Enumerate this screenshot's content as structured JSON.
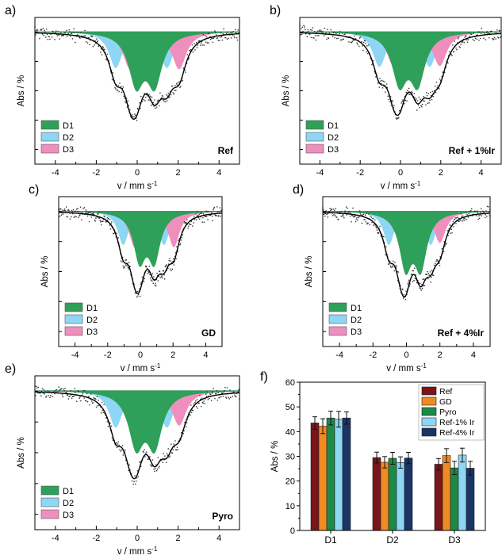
{
  "colors": {
    "D1": "#2ea05a",
    "D2": "#8fd6f4",
    "D3": "#ef8fbd",
    "fit": "#000000",
    "points": "#333333"
  },
  "chart_data": [
    {
      "panel": "a)",
      "type": "mossbauer-spectrum",
      "sample": "Ref",
      "xlabel": "v / mm s-1",
      "ylabel": "Abs / %",
      "xlim": [
        -5,
        5
      ],
      "xticks": [
        "-4",
        "-2",
        "0",
        "2",
        "4"
      ],
      "legend": [
        "D1",
        "D2",
        "D3"
      ],
      "legend_position": "bottom-left",
      "components": [
        {
          "name": "D1",
          "centers": [
            -0.05,
            0.85
          ],
          "width": 0.45,
          "depth": 0.46
        },
        {
          "name": "D2",
          "centers": [
            -1.05,
            1.45
          ],
          "width": 0.4,
          "depth": 0.33
        },
        {
          "name": "D3",
          "centers": [
            -0.35,
            2.05
          ],
          "width": 0.42,
          "depth": 0.34
        }
      ]
    },
    {
      "panel": "b)",
      "type": "mossbauer-spectrum",
      "sample": "Ref + 1%Ir",
      "xlabel": "v / mm s-1",
      "ylabel": "Abs / %",
      "xlim": [
        -5,
        5
      ],
      "xticks": [
        "-4",
        "-2",
        "0",
        "2",
        "4"
      ],
      "legend": [
        "D1",
        "D2",
        "D3"
      ],
      "legend_position": "bottom-left",
      "components": [
        {
          "name": "D1",
          "centers": [
            -0.05,
            0.85
          ],
          "width": 0.45,
          "depth": 0.45
        },
        {
          "name": "D2",
          "centers": [
            -1.05,
            1.45
          ],
          "width": 0.4,
          "depth": 0.32
        },
        {
          "name": "D3",
          "centers": [
            -0.35,
            1.95
          ],
          "width": 0.42,
          "depth": 0.31
        }
      ]
    },
    {
      "panel": "c)",
      "type": "mossbauer-spectrum",
      "sample": "GD",
      "xlabel": "v / mm s-1",
      "ylabel": "Abs / %",
      "xlim": [
        -5,
        5
      ],
      "xticks": [
        "-4",
        "-2",
        "0",
        "2",
        "4"
      ],
      "legend": [
        "D1",
        "D2",
        "D3"
      ],
      "legend_position": "bottom-left",
      "components": [
        {
          "name": "D1",
          "centers": [
            -0.05,
            0.85
          ],
          "width": 0.45,
          "depth": 0.42
        },
        {
          "name": "D2",
          "centers": [
            -1.05,
            1.45
          ],
          "width": 0.4,
          "depth": 0.3
        },
        {
          "name": "D3",
          "centers": [
            -0.35,
            2.05
          ],
          "width": 0.42,
          "depth": 0.32
        }
      ]
    },
    {
      "panel": "d)",
      "type": "mossbauer-spectrum",
      "sample": "Ref + 4%Ir",
      "xlabel": "v / mm s-1",
      "ylabel": "Abs / %",
      "xlim": [
        -5,
        5
      ],
      "xticks": [
        "-4",
        "-2",
        "0",
        "2",
        "4"
      ],
      "legend": [
        "D1",
        "D2",
        "D3"
      ],
      "legend_position": "bottom-left",
      "components": [
        {
          "name": "D1",
          "centers": [
            -0.05,
            0.85
          ],
          "width": 0.45,
          "depth": 0.48
        },
        {
          "name": "D2",
          "centers": [
            -1.05,
            1.45
          ],
          "width": 0.4,
          "depth": 0.3
        },
        {
          "name": "D3",
          "centers": [
            -0.35,
            2.0
          ],
          "width": 0.42,
          "depth": 0.28
        }
      ]
    },
    {
      "panel": "e)",
      "type": "mossbauer-spectrum",
      "sample": "Pyro",
      "xlabel": "v / mm s-1",
      "ylabel": "Abs / %",
      "xlim": [
        -5,
        5
      ],
      "xticks": [
        "-4",
        "-2",
        "0",
        "2",
        "4"
      ],
      "legend": [
        "D1",
        "D2",
        "D3"
      ],
      "legend_position": "bottom-left",
      "components": [
        {
          "name": "D1",
          "centers": [
            -0.05,
            0.85
          ],
          "width": 0.45,
          "depth": 0.46
        },
        {
          "name": "D2",
          "centers": [
            -1.05,
            1.45
          ],
          "width": 0.4,
          "depth": 0.32
        },
        {
          "name": "D3",
          "centers": [
            -0.35,
            2.05
          ],
          "width": 0.42,
          "depth": 0.3
        }
      ]
    },
    {
      "panel": "f)",
      "type": "bar",
      "ylabel": "Abs / %",
      "ylim": [
        0,
        60
      ],
      "yticks": [
        "0",
        "10",
        "20",
        "30",
        "40",
        "50",
        "60"
      ],
      "categories": [
        "D1",
        "D2",
        "D3"
      ],
      "legend_position": "top-right",
      "series": [
        {
          "name": "Ref",
          "color": "#7b1518",
          "values": [
            43.5,
            29.5,
            26.8
          ],
          "errors": [
            2.5,
            2.2,
            2.3
          ]
        },
        {
          "name": "GD",
          "color": "#f08a22",
          "values": [
            42.2,
            27.6,
            30.3
          ],
          "errors": [
            3.0,
            2.3,
            2.8
          ]
        },
        {
          "name": "Pyro",
          "color": "#1d8a46",
          "values": [
            45.5,
            29.2,
            25.3
          ],
          "errors": [
            2.8,
            2.4,
            2.7
          ]
        },
        {
          "name": "Ref-1% Ir",
          "color": "#8fd6f4",
          "values": [
            45.0,
            27.5,
            30.5
          ],
          "errors": [
            3.2,
            2.3,
            2.8
          ]
        },
        {
          "name": "Ref-4% Ir",
          "color": "#1a3466",
          "values": [
            45.5,
            29.3,
            25.2
          ],
          "errors": [
            2.5,
            2.3,
            2.8
          ]
        }
      ]
    }
  ]
}
